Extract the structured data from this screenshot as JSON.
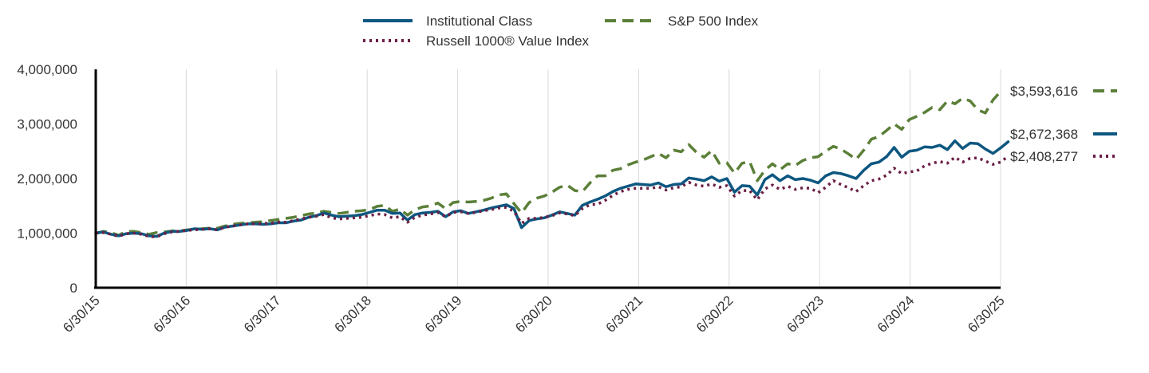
{
  "colors": {
    "institutional": "#0d5781",
    "sp500": "#5b7f38",
    "russell": "#6b1f45",
    "grid": "#d9d9d9",
    "axis": "#000000",
    "text": "#333333"
  },
  "chart_data": {
    "type": "line",
    "title": "",
    "xlabel": "",
    "ylabel": "",
    "ylim": [
      0,
      4000000
    ],
    "yticks": [
      {
        "value": 0,
        "label": "0"
      },
      {
        "value": 1000000,
        "label": "1,000,000"
      },
      {
        "value": 2000000,
        "label": "2,000,000"
      },
      {
        "value": 3000000,
        "label": "3,000,000"
      },
      {
        "value": 4000000,
        "label": "4,000,000"
      }
    ],
    "xticks": [
      "6/30/15",
      "6/30/16",
      "6/30/17",
      "6/30/18",
      "6/30/19",
      "6/30/20",
      "6/30/21",
      "6/30/22",
      "6/30/23",
      "6/30/24",
      "6/30/25"
    ],
    "grid": "vertical",
    "legend_position": "top-center",
    "series": [
      {
        "key": "sp500",
        "name": "S&P 500 Index",
        "style": "dashed",
        "end_label": "$3,593,616",
        "values": [
          1000000,
          1030000,
          1010000,
          960000,
          1030000,
          1030000,
          1010000,
          980000,
          1010000,
          1020000,
          1040000,
          1040000,
          1060000,
          1070000,
          1080000,
          1090000,
          1090000,
          1130000,
          1160000,
          1180000,
          1190000,
          1200000,
          1210000,
          1230000,
          1250000,
          1270000,
          1290000,
          1320000,
          1350000,
          1370000,
          1400000,
          1380000,
          1360000,
          1380000,
          1400000,
          1410000,
          1430000,
          1490000,
          1510000,
          1400000,
          1440000,
          1330000,
          1430000,
          1480000,
          1500000,
          1550000,
          1450000,
          1560000,
          1580000,
          1570000,
          1580000,
          1600000,
          1640000,
          1700000,
          1720000,
          1540000,
          1370000,
          1560000,
          1640000,
          1680000,
          1750000,
          1840000,
          1880000,
          1780000,
          1760000,
          1920000,
          2050000,
          2050000,
          2150000,
          2180000,
          2250000,
          2300000,
          2340000,
          2400000,
          2460000,
          2380000,
          2520000,
          2490000,
          2620000,
          2480000,
          2390000,
          2510000,
          2280000,
          2290000,
          2100000,
          2280000,
          2310000,
          1960000,
          2150000,
          2270000,
          2160000,
          2270000,
          2240000,
          2330000,
          2380000,
          2400000,
          2500000,
          2590000,
          2540000,
          2450000,
          2350000,
          2520000,
          2720000,
          2770000,
          2880000,
          3000000,
          2900000,
          3080000,
          3140000,
          3210000,
          3300000,
          3260000,
          3420000,
          3370000,
          3470000,
          3420000,
          3260000,
          3200000,
          3440000,
          3593616
        ]
      },
      {
        "key": "institutional",
        "name": "Institutional Class",
        "style": "solid",
        "end_label": "$2,672,368",
        "values": [
          1000000,
          1020000,
          980000,
          950000,
          990000,
          1000000,
          990000,
          950000,
          940000,
          1000000,
          1030000,
          1030000,
          1050000,
          1080000,
          1070000,
          1080000,
          1060000,
          1110000,
          1130000,
          1150000,
          1170000,
          1170000,
          1160000,
          1170000,
          1190000,
          1190000,
          1220000,
          1240000,
          1290000,
          1320000,
          1370000,
          1330000,
          1300000,
          1310000,
          1320000,
          1340000,
          1380000,
          1420000,
          1420000,
          1360000,
          1370000,
          1240000,
          1340000,
          1370000,
          1380000,
          1400000,
          1300000,
          1390000,
          1410000,
          1360000,
          1390000,
          1420000,
          1460000,
          1490000,
          1520000,
          1450000,
          1100000,
          1230000,
          1260000,
          1280000,
          1330000,
          1390000,
          1360000,
          1330000,
          1510000,
          1570000,
          1620000,
          1680000,
          1760000,
          1820000,
          1860000,
          1900000,
          1890000,
          1880000,
          1920000,
          1850000,
          1890000,
          1900000,
          2010000,
          1990000,
          1960000,
          2030000,
          1950000,
          2000000,
          1750000,
          1870000,
          1860000,
          1700000,
          1980000,
          2070000,
          1960000,
          2050000,
          1980000,
          2000000,
          1970000,
          1920000,
          2050000,
          2110000,
          2090000,
          2050000,
          2000000,
          2150000,
          2270000,
          2300000,
          2400000,
          2570000,
          2390000,
          2500000,
          2520000,
          2580000,
          2570000,
          2610000,
          2530000,
          2690000,
          2550000,
          2650000,
          2640000,
          2540000,
          2460000,
          2560000,
          2672368
        ]
      },
      {
        "key": "russell",
        "name": "Russell 1000® Value Index",
        "style": "dotted",
        "end_label": "$2,408,277",
        "values": [
          1000000,
          1010000,
          980000,
          940000,
          990000,
          1000000,
          980000,
          940000,
          930000,
          990000,
          1020000,
          1030000,
          1050000,
          1060000,
          1070000,
          1080000,
          1060000,
          1110000,
          1130000,
          1150000,
          1170000,
          1170000,
          1180000,
          1180000,
          1200000,
          1200000,
          1230000,
          1260000,
          1290000,
          1310000,
          1340000,
          1280000,
          1260000,
          1270000,
          1280000,
          1290000,
          1320000,
          1350000,
          1340000,
          1280000,
          1300000,
          1200000,
          1290000,
          1330000,
          1350000,
          1380000,
          1300000,
          1380000,
          1390000,
          1360000,
          1380000,
          1410000,
          1430000,
          1460000,
          1470000,
          1400000,
          1180000,
          1270000,
          1270000,
          1290000,
          1320000,
          1370000,
          1350000,
          1320000,
          1450000,
          1520000,
          1530000,
          1600000,
          1690000,
          1760000,
          1800000,
          1820000,
          1820000,
          1820000,
          1850000,
          1790000,
          1830000,
          1850000,
          1930000,
          1880000,
          1860000,
          1900000,
          1840000,
          1870000,
          1680000,
          1780000,
          1780000,
          1610000,
          1810000,
          1880000,
          1800000,
          1860000,
          1800000,
          1830000,
          1820000,
          1740000,
          1840000,
          1960000,
          1890000,
          1830000,
          1760000,
          1870000,
          1960000,
          1990000,
          2060000,
          2190000,
          2090000,
          2120000,
          2140000,
          2230000,
          2280000,
          2310000,
          2280000,
          2390000,
          2300000,
          2370000,
          2380000,
          2320000,
          2260000,
          2300000,
          2408277
        ]
      }
    ]
  }
}
